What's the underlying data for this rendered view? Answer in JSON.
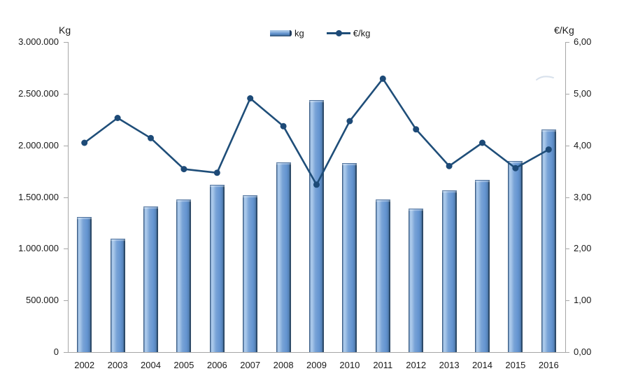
{
  "chart_data": {
    "type": "bar",
    "subtype": "combo bar + line, dual y-axes",
    "categories": [
      "2002",
      "2003",
      "2004",
      "2005",
      "2006",
      "2007",
      "2008",
      "2009",
      "2010",
      "2011",
      "2012",
      "2013",
      "2014",
      "2015",
      "2016"
    ],
    "series": [
      {
        "name": "kg",
        "type": "bar",
        "axis": "left",
        "values": [
          1300000,
          1090000,
          1400000,
          1470000,
          1610000,
          1510000,
          1830000,
          2430000,
          1820000,
          1470000,
          1380000,
          1560000,
          1660000,
          1840000,
          2150000
        ]
      },
      {
        "name": "€/kg",
        "type": "line",
        "axis": "right",
        "values": [
          4.05,
          4.53,
          4.14,
          3.54,
          3.47,
          4.91,
          4.37,
          3.24,
          4.47,
          5.29,
          4.31,
          3.6,
          4.05,
          3.56,
          3.92
        ]
      }
    ],
    "left_axis": {
      "title": "Kg",
      "min": 0,
      "max": 3000000,
      "tick_labels": [
        "3.000.000",
        "2.500.000",
        "2.000.000",
        "1.500.000",
        "1.000.000",
        "500.000",
        "0"
      ]
    },
    "right_axis": {
      "title": "€/Kg",
      "min": 0,
      "max": 6,
      "tick_labels": [
        "6,00",
        "5,00",
        "4,00",
        "3,00",
        "2,00",
        "1,00",
        "0,00"
      ]
    },
    "legend": {
      "position": "top-center",
      "entries": [
        "kg",
        "€/kg"
      ]
    },
    "grid": "off"
  },
  "colors": {
    "bar_fill": "#6394d0",
    "bar_highlight": "#aac9ea",
    "bar_edge": "#24415f",
    "line": "#1f4e79",
    "marker": "#1d4a77",
    "axis": "#a6a6a6",
    "text": "#1a1a1a",
    "background": "#ffffff"
  }
}
